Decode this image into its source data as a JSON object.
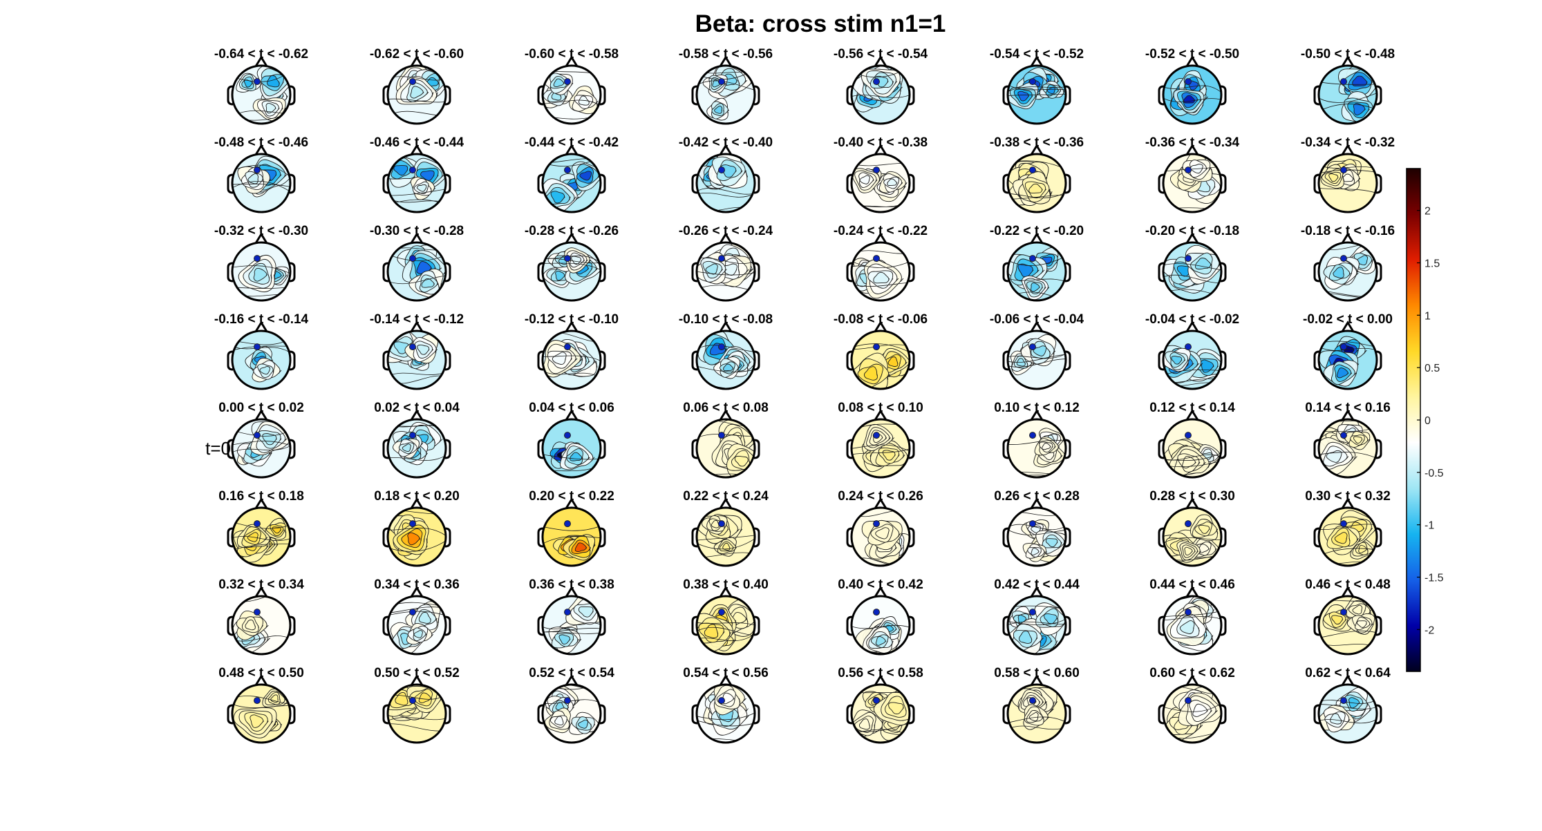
{
  "figure": {
    "title": "Beta: cross stim  n1=1"
  },
  "chart_data": {
    "type": "heatmap",
    "title": "Beta: cross stim  n1=1",
    "time_windows": [
      "-0.64 < t < -0.62",
      "-0.62 < t < -0.60",
      "-0.60 < t < -0.58",
      "-0.58 < t < -0.56",
      "-0.56 < t < -0.54",
      "-0.54 < t < -0.52",
      "-0.52 < t < -0.50",
      "-0.50 < t < -0.48",
      "-0.48 < t < -0.46",
      "-0.46 < t < -0.44",
      "-0.44 < t < -0.42",
      "-0.42 < t < -0.40",
      "-0.40 < t < -0.38",
      "-0.38 < t < -0.36",
      "-0.36 < t < -0.34",
      "-0.34 < t < -0.32",
      "-0.32 < t < -0.30",
      "-0.30 < t < -0.28",
      "-0.28 < t < -0.26",
      "-0.26 < t < -0.24",
      "-0.24 < t < -0.22",
      "-0.22 < t < -0.20",
      "-0.20 < t < -0.18",
      "-0.18 < t < -0.16",
      "-0.16 < t < -0.14",
      "-0.14 < t < -0.12",
      "-0.12 < t < -0.10",
      "-0.10 < t < -0.08",
      "-0.08 < t < -0.06",
      "-0.06 < t < -0.04",
      "-0.04 < t < -0.02",
      "-0.02 < t < 0.00",
      "0.00 < t < 0.02",
      "0.02 < t < 0.04",
      "0.04 < t < 0.06",
      "0.06 < t < 0.08",
      "0.08 < t < 0.10",
      "0.10 < t < 0.12",
      "0.12 < t < 0.14",
      "0.14 < t < 0.16",
      "0.16 < t < 0.18",
      "0.18 < t < 0.20",
      "0.20 < t < 0.22",
      "0.22 < t < 0.24",
      "0.24 < t < 0.26",
      "0.26 < t < 0.28",
      "0.28 < t < 0.30",
      "0.30 < t < 0.32",
      "0.32 < t < 0.34",
      "0.34 < t < 0.36",
      "0.36 < t < 0.38",
      "0.38 < t < 0.40",
      "0.40 < t < 0.42",
      "0.42 < t < 0.44",
      "0.44 < t < 0.46",
      "0.46 < t < 0.48",
      "0.48 < t < 0.50",
      "0.50 < t < 0.52",
      "0.52 < t < 0.54",
      "0.54 < t < 0.56",
      "0.56 < t < 0.58",
      "0.58 < t < 0.60",
      "0.60 < t < 0.62",
      "0.62 < t < 0.64"
    ],
    "grid": {
      "rows": 8,
      "cols": 8
    },
    "mean_value": [
      -0.5,
      -0.5,
      -0.4,
      -0.5,
      -0.7,
      -1.3,
      -1.4,
      -1.1,
      -0.6,
      -0.7,
      -0.9,
      -0.8,
      -0.3,
      0.1,
      -0.2,
      0.1,
      -0.5,
      -0.7,
      -0.6,
      -0.4,
      -0.3,
      -0.9,
      -0.9,
      -0.6,
      -0.8,
      -0.7,
      -0.6,
      -0.7,
      0.3,
      -0.5,
      -0.8,
      -1.1,
      -0.5,
      -0.6,
      -1.1,
      -0.1,
      0.1,
      -0.2,
      -0.1,
      -0.1,
      0.4,
      0.5,
      0.8,
      0.1,
      -0.2,
      -0.3,
      0.1,
      0.2,
      -0.3,
      -0.4,
      -0.5,
      0.2,
      -0.4,
      -0.6,
      -0.4,
      0.1,
      0.2,
      0.2,
      -0.3,
      -0.4,
      0.0,
      0.1,
      -0.1,
      -0.6
    ],
    "event_marker": {
      "label": "t=0",
      "panel_index": 32
    },
    "colorbar": {
      "range": [
        -2.4,
        2.4
      ],
      "ticks": [
        -2,
        -1.5,
        -1,
        -0.5,
        0,
        0.5,
        1,
        1.5,
        2
      ],
      "tick_labels": [
        "-2",
        "-1.5",
        "-1",
        "-0.5",
        "0",
        "0.5",
        "1",
        "1.5",
        "2"
      ],
      "colormap": [
        "#00001e",
        "#0000a8",
        "#1560e8",
        "#16b4f0",
        "#9fe6f4",
        "#ffffff",
        "#fff5a0",
        "#ffd928",
        "#ff8a00",
        "#e01e00",
        "#7a0000",
        "#1e0000"
      ]
    }
  }
}
